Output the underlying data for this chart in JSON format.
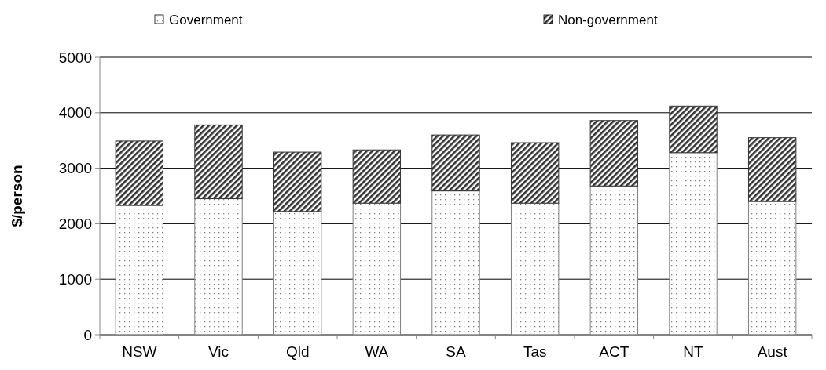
{
  "chart_data": {
    "type": "bar",
    "stacked": true,
    "ylabel": "$/person",
    "categories": [
      "NSW",
      "Vic",
      "Qld",
      "WA",
      "SA",
      "Tas",
      "ACT",
      "NT",
      "Aust"
    ],
    "series": [
      {
        "name": "Government",
        "color": "#808080",
        "values": [
          2330,
          2450,
          2220,
          2370,
          2590,
          2370,
          2680,
          3280,
          2400
        ]
      },
      {
        "name": "Non-government",
        "color": "#333333",
        "values": [
          1160,
          1330,
          1070,
          960,
          1010,
          1090,
          1180,
          840,
          1150
        ]
      }
    ],
    "ylim": [
      0,
      5000
    ],
    "yticks": [
      0,
      1000,
      2000,
      3000,
      4000,
      5000
    ],
    "grid": "y",
    "legend": "top"
  }
}
